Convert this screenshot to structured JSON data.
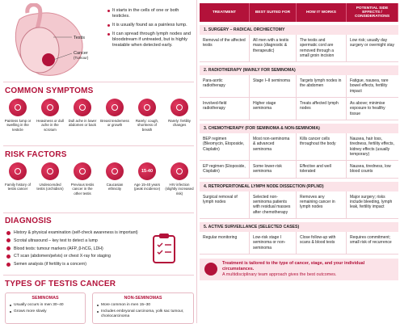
{
  "overview": {
    "labels": [
      "Testis",
      "Cancer",
      "(Tumour)"
    ],
    "points": [
      "It starts in the cells of one or both testicles.",
      "It is usually found as a painless lump.",
      "It can spread through lymph nodes and bloodstream if untreated, but is highly treatable when detected early."
    ]
  },
  "symptoms": {
    "title": "COMMON SYMPTOMS",
    "items": [
      "Painless lump or swelling in the testicle",
      "Heaviness or dull ache in the scrotum",
      "Dull ache in lower abdomen or back",
      "Breast tenderness or growth",
      "Rarely: cough, shortness of breath",
      "Rarely: fertility changes"
    ]
  },
  "risk_factors": {
    "title": "RISK FACTORS",
    "items": [
      {
        "label": "Family history of testis cancer"
      },
      {
        "label": "Undescended testis (orchidism)"
      },
      {
        "label": "Previous testis cancer in the other testis"
      },
      {
        "label": "Caucasian ethnicity"
      },
      {
        "icon": "15-40",
        "label": "Age 15-40 years (peak incidence)"
      },
      {
        "label": "HIV infection (slightly increased risk)"
      }
    ]
  },
  "diagnosis": {
    "title": "DIAGNOSIS",
    "items": [
      "History & physical examination (self-check awareness is important)",
      "Scrotal ultrasound – key test to detect a lump",
      "Blood tests: tumour markers (AFP, β-hCG, LDH)",
      "CT scan (abdomen/pelvis) or chest X-ray for staging",
      "Semen analysis (if fertility is a concern)"
    ]
  },
  "types": {
    "title": "TYPES OF TESTIS CANCER",
    "columns": [
      {
        "heading": "SEMINOMAS",
        "items": [
          "Usually occurs in men 30–40",
          "Grows more slowly"
        ]
      },
      {
        "heading": "NON-SEMINOMAS",
        "items": [
          "More common in men 15–30",
          "Includes embryonal carcinoma, yolk sac tumour, choriocarcinoma"
        ]
      }
    ]
  },
  "table": {
    "headers": [
      "TREATMENT",
      "BEST SUITED FOR",
      "HOW IT WORKS",
      "POTENTIAL SIDE EFFECTS / CONSIDERATIONS"
    ],
    "sections": [
      {
        "title": "1. SURGERY – RADICAL ORCHIECTOMY",
        "rows": [
          [
            "Removal of the affected testis",
            "All men with a testis mass (diagnostic & therapeutic)",
            "The testis and spermatic cord are removed through a small groin incision",
            "Low risk; usually day surgery or overnight stay"
          ]
        ]
      },
      {
        "title": "2. RADIOTHERAPY (MAINLY FOR SEMINOMA)",
        "rows": [
          [
            "Para-aortic radiotherapy",
            "Stage I–II seminoma",
            "Targets lymph nodes in the abdomen",
            "Fatigue, nausea, rare bowel effects, fertility impact"
          ],
          [
            "Involved-field radiotherapy",
            "Higher stage seminoma",
            "Treats affected lymph nodes",
            "As above; minimise exposure to healthy tissue"
          ]
        ]
      },
      {
        "title": "3. CHEMOTHERAPY (FOR SEMINOMA & NON-SEMINOMA)",
        "rows": [
          [
            "BEP regimen (Bleomycin, Etoposide, Cisplatin)",
            "Most non-seminoma & advanced seminoma",
            "Kills cancer cells throughout the body",
            "Nausea, hair loss, tiredness, fertility effects, kidney effects (usually temporary)"
          ],
          [
            "EP regimen (Etoposide, Cisplatin)",
            "Some lower-risk seminoma",
            "Effective and well tolerated",
            "Nausea, tiredness, low blood counts"
          ]
        ]
      },
      {
        "title": "4. RETROPERITONEAL LYMPH NODE DISSECTION (RPLND)",
        "rows": [
          [
            "Surgical removal of lymph nodes",
            "Selected non-seminoma patients with residual masses after chemotherapy",
            "Removes any remaining cancer in lymph nodes",
            "Major surgery; risks include bleeding, lymph leak, fertility impact"
          ]
        ]
      },
      {
        "title": "5. ACTIVE SURVEILLANCE (SELECTED CASES)",
        "rows": [
          [
            "Regular monitoring",
            "Low-risk stage I seminoma or non-seminoma",
            "Close follow-up with scans & blood tests",
            "Requires commitment; small risk of recurrence"
          ]
        ]
      }
    ]
  },
  "footer": {
    "lines": [
      "Treatment is tailored to the type of cancer, stage, and your individual circumstances.",
      "A multidisciplinary team approach gives the best outcomes."
    ]
  }
}
